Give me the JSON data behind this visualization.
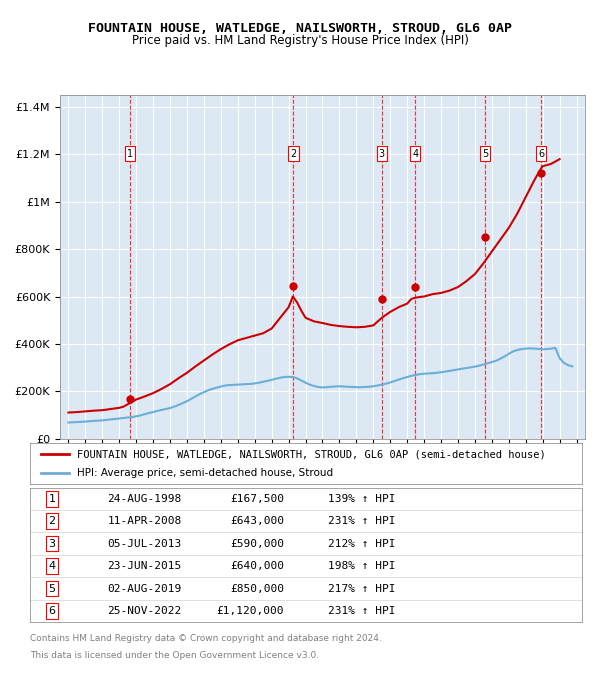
{
  "title": "FOUNTAIN HOUSE, WATLEDGE, NAILSWORTH, STROUD, GL6 0AP",
  "subtitle": "Price paid vs. HM Land Registry's House Price Index (HPI)",
  "legend_house": "FOUNTAIN HOUSE, WATLEDGE, NAILSWORTH, STROUD, GL6 0AP (semi-detached house)",
  "legend_hpi": "HPI: Average price, semi-detached house, Stroud",
  "footnote1": "Contains HM Land Registry data © Crown copyright and database right 2024.",
  "footnote2": "This data is licensed under the Open Government Licence v3.0.",
  "plot_bg": "#dce9f5",
  "hpi_color": "#6baed6",
  "house_color": "#cc0000",
  "ylim": [
    0,
    1450000
  ],
  "yticks": [
    0,
    200000,
    400000,
    600000,
    800000,
    1000000,
    1200000,
    1400000
  ],
  "ytick_labels": [
    "£0",
    "£200K",
    "£400K",
    "£600K",
    "£800K",
    "£1M",
    "£1.2M",
    "£1.4M"
  ],
  "xlim_start": 1994.5,
  "xlim_end": 2025.5,
  "sale_dates": [
    1998.645,
    2008.276,
    2013.505,
    2015.478,
    2019.585,
    2022.899
  ],
  "sale_prices": [
    167500,
    643000,
    590000,
    640000,
    850000,
    1120000
  ],
  "sale_labels": [
    "1",
    "2",
    "3",
    "4",
    "5",
    "6"
  ],
  "sale_info": [
    [
      "1",
      "24-AUG-1998",
      "£167,500",
      "139% ↑ HPI"
    ],
    [
      "2",
      "11-APR-2008",
      "£643,000",
      "231% ↑ HPI"
    ],
    [
      "3",
      "05-JUL-2013",
      "£590,000",
      "212% ↑ HPI"
    ],
    [
      "4",
      "23-JUN-2015",
      "£640,000",
      "198% ↑ HPI"
    ],
    [
      "5",
      "02-AUG-2019",
      "£850,000",
      "217% ↑ HPI"
    ],
    [
      "6",
      "25-NOV-2022",
      "£1,120,000",
      "231% ↑ HPI"
    ]
  ],
  "hpi_years": [
    1995,
    1995.25,
    1995.5,
    1995.75,
    1996,
    1996.25,
    1996.5,
    1996.75,
    1997,
    1997.25,
    1997.5,
    1997.75,
    1998,
    1998.25,
    1998.5,
    1998.75,
    1999,
    1999.25,
    1999.5,
    1999.75,
    2000,
    2000.25,
    2000.5,
    2000.75,
    2001,
    2001.25,
    2001.5,
    2001.75,
    2002,
    2002.25,
    2002.5,
    2002.75,
    2003,
    2003.25,
    2003.5,
    2003.75,
    2004,
    2004.25,
    2004.5,
    2004.75,
    2005,
    2005.25,
    2005.5,
    2005.75,
    2006,
    2006.25,
    2006.5,
    2006.75,
    2007,
    2007.25,
    2007.5,
    2007.75,
    2008,
    2008.25,
    2008.5,
    2008.75,
    2009,
    2009.25,
    2009.5,
    2009.75,
    2010,
    2010.25,
    2010.5,
    2010.75,
    2011,
    2011.25,
    2011.5,
    2011.75,
    2012,
    2012.25,
    2012.5,
    2012.75,
    2013,
    2013.25,
    2013.5,
    2013.75,
    2014,
    2014.25,
    2014.5,
    2014.75,
    2015,
    2015.25,
    2015.5,
    2015.75,
    2016,
    2016.25,
    2016.5,
    2016.75,
    2017,
    2017.25,
    2017.5,
    2017.75,
    2018,
    2018.25,
    2018.5,
    2018.75,
    2019,
    2019.25,
    2019.5,
    2019.75,
    2020,
    2020.25,
    2020.5,
    2020.75,
    2021,
    2021.25,
    2021.5,
    2021.75,
    2022,
    2022.25,
    2022.5,
    2022.75,
    2023,
    2023.25,
    2023.5,
    2023.75,
    2024,
    2024.25,
    2024.5,
    2024.75
  ],
  "hpi_values": [
    68000,
    69000,
    70000,
    71000,
    72000,
    73500,
    75000,
    76000,
    77000,
    79000,
    81000,
    83000,
    85000,
    87000,
    89000,
    91000,
    94000,
    98000,
    103000,
    108000,
    112000,
    117000,
    121000,
    125000,
    129000,
    135000,
    142000,
    150000,
    158000,
    168000,
    178000,
    188000,
    196000,
    204000,
    210000,
    215000,
    220000,
    224000,
    226000,
    227000,
    228000,
    229000,
    230000,
    231000,
    233000,
    236000,
    240000,
    244000,
    248000,
    253000,
    257000,
    260000,
    261000,
    260000,
    254000,
    245000,
    236000,
    228000,
    222000,
    218000,
    216000,
    217000,
    219000,
    220000,
    221000,
    220000,
    219000,
    218000,
    217000,
    217000,
    218000,
    219000,
    221000,
    224000,
    228000,
    232000,
    237000,
    243000,
    249000,
    255000,
    260000,
    265000,
    269000,
    272000,
    274000,
    275000,
    276000,
    278000,
    280000,
    283000,
    286000,
    289000,
    292000,
    295000,
    298000,
    301000,
    304000,
    308000,
    313000,
    318000,
    323000,
    329000,
    337000,
    347000,
    358000,
    368000,
    374000,
    378000,
    380000,
    381000,
    380000,
    379000,
    377000,
    378000,
    380000,
    383000,
    340000,
    320000,
    310000,
    305000
  ],
  "house_years": [
    1995,
    1995.5,
    1996,
    1996.5,
    1997,
    1997.5,
    1998,
    1998.25,
    1998.5,
    1998.75,
    1999,
    1999.5,
    2000,
    2000.5,
    2001,
    2001.5,
    2002,
    2002.5,
    2003,
    2003.5,
    2004,
    2004.5,
    2005,
    2005.5,
    2006,
    2006.5,
    2007,
    2007.5,
    2008,
    2008.25,
    2008.5,
    2008.75,
    2009,
    2009.5,
    2010,
    2010.5,
    2011,
    2011.5,
    2012,
    2012.5,
    2013,
    2013.5,
    2014,
    2014.5,
    2015,
    2015.25,
    2015.5,
    2015.75,
    2016,
    2016.5,
    2017,
    2017.5,
    2018,
    2018.5,
    2019,
    2019.5,
    2020,
    2020.5,
    2021,
    2021.5,
    2022,
    2022.5,
    2022.9,
    2023,
    2023.5,
    2024
  ],
  "house_values": [
    110000,
    112000,
    115000,
    118000,
    120000,
    125000,
    130000,
    135000,
    145000,
    155000,
    165000,
    178000,
    192000,
    210000,
    230000,
    255000,
    278000,
    305000,
    330000,
    355000,
    378000,
    398000,
    415000,
    425000,
    435000,
    445000,
    465000,
    510000,
    555000,
    600000,
    575000,
    540000,
    510000,
    495000,
    488000,
    480000,
    475000,
    472000,
    470000,
    472000,
    478000,
    510000,
    535000,
    555000,
    570000,
    590000,
    595000,
    598000,
    600000,
    610000,
    615000,
    625000,
    640000,
    665000,
    695000,
    740000,
    790000,
    840000,
    890000,
    950000,
    1020000,
    1090000,
    1140000,
    1150000,
    1160000,
    1180000
  ]
}
